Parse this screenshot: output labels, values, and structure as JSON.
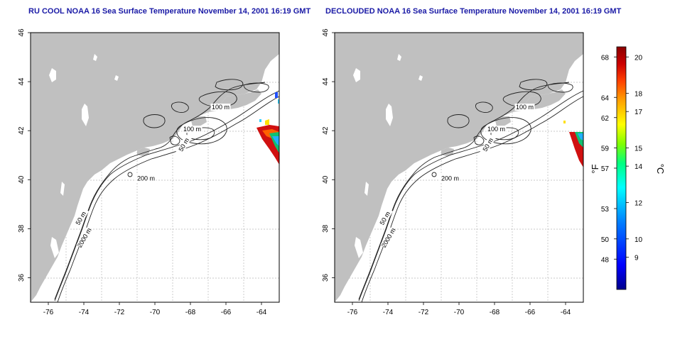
{
  "panels": [
    {
      "title": "RU COOL NOAA 16 Sea Surface Temperature November 14, 2001 16:19 GMT"
    },
    {
      "title": "DECLOUDED NOAA 16 Sea Surface Temperature November 14, 2001 16:19 GMT"
    }
  ],
  "map": {
    "lon_ticks": [
      "-76",
      "-74",
      "-72",
      "-70",
      "-68",
      "-66",
      "-64"
    ],
    "lat_ticks": [
      "46",
      "44",
      "42",
      "40",
      "38",
      "36"
    ],
    "lon_range": [
      -77,
      -63
    ],
    "lat_range": [
      35,
      46
    ],
    "contour_labels": [
      {
        "text": "100 m",
        "lon": -66.3,
        "lat": 42.9
      },
      {
        "text": "100 m",
        "lon": -67.9,
        "lat": 42.0
      },
      {
        "text": "50 m",
        "lon": -68.3,
        "lat": 41.4
      },
      {
        "text": "200 m",
        "lon": -70.5,
        "lat": 40.0
      },
      {
        "text": "50 m",
        "lon": -74.1,
        "lat": 38.4
      },
      {
        "text": "2000 m",
        "lon": -73.9,
        "lat": 37.6
      }
    ],
    "land_color": "#c0c0c0",
    "grid": true
  },
  "colorbar": {
    "f_label": "°F",
    "c_label": "°C",
    "f_ticks": [
      "68",
      "64",
      "62",
      "59",
      "57",
      "53",
      "50",
      "48"
    ],
    "c_ticks": [
      "20",
      "18",
      "17",
      "15",
      "14",
      "12",
      "10",
      "9"
    ],
    "colors": [
      "#00008b",
      "#0000ff",
      "#0080ff",
      "#00ffff",
      "#00ff80",
      "#80ff00",
      "#ffff00",
      "#ffa000",
      "#ff4000",
      "#cc0000",
      "#8b0000"
    ]
  }
}
